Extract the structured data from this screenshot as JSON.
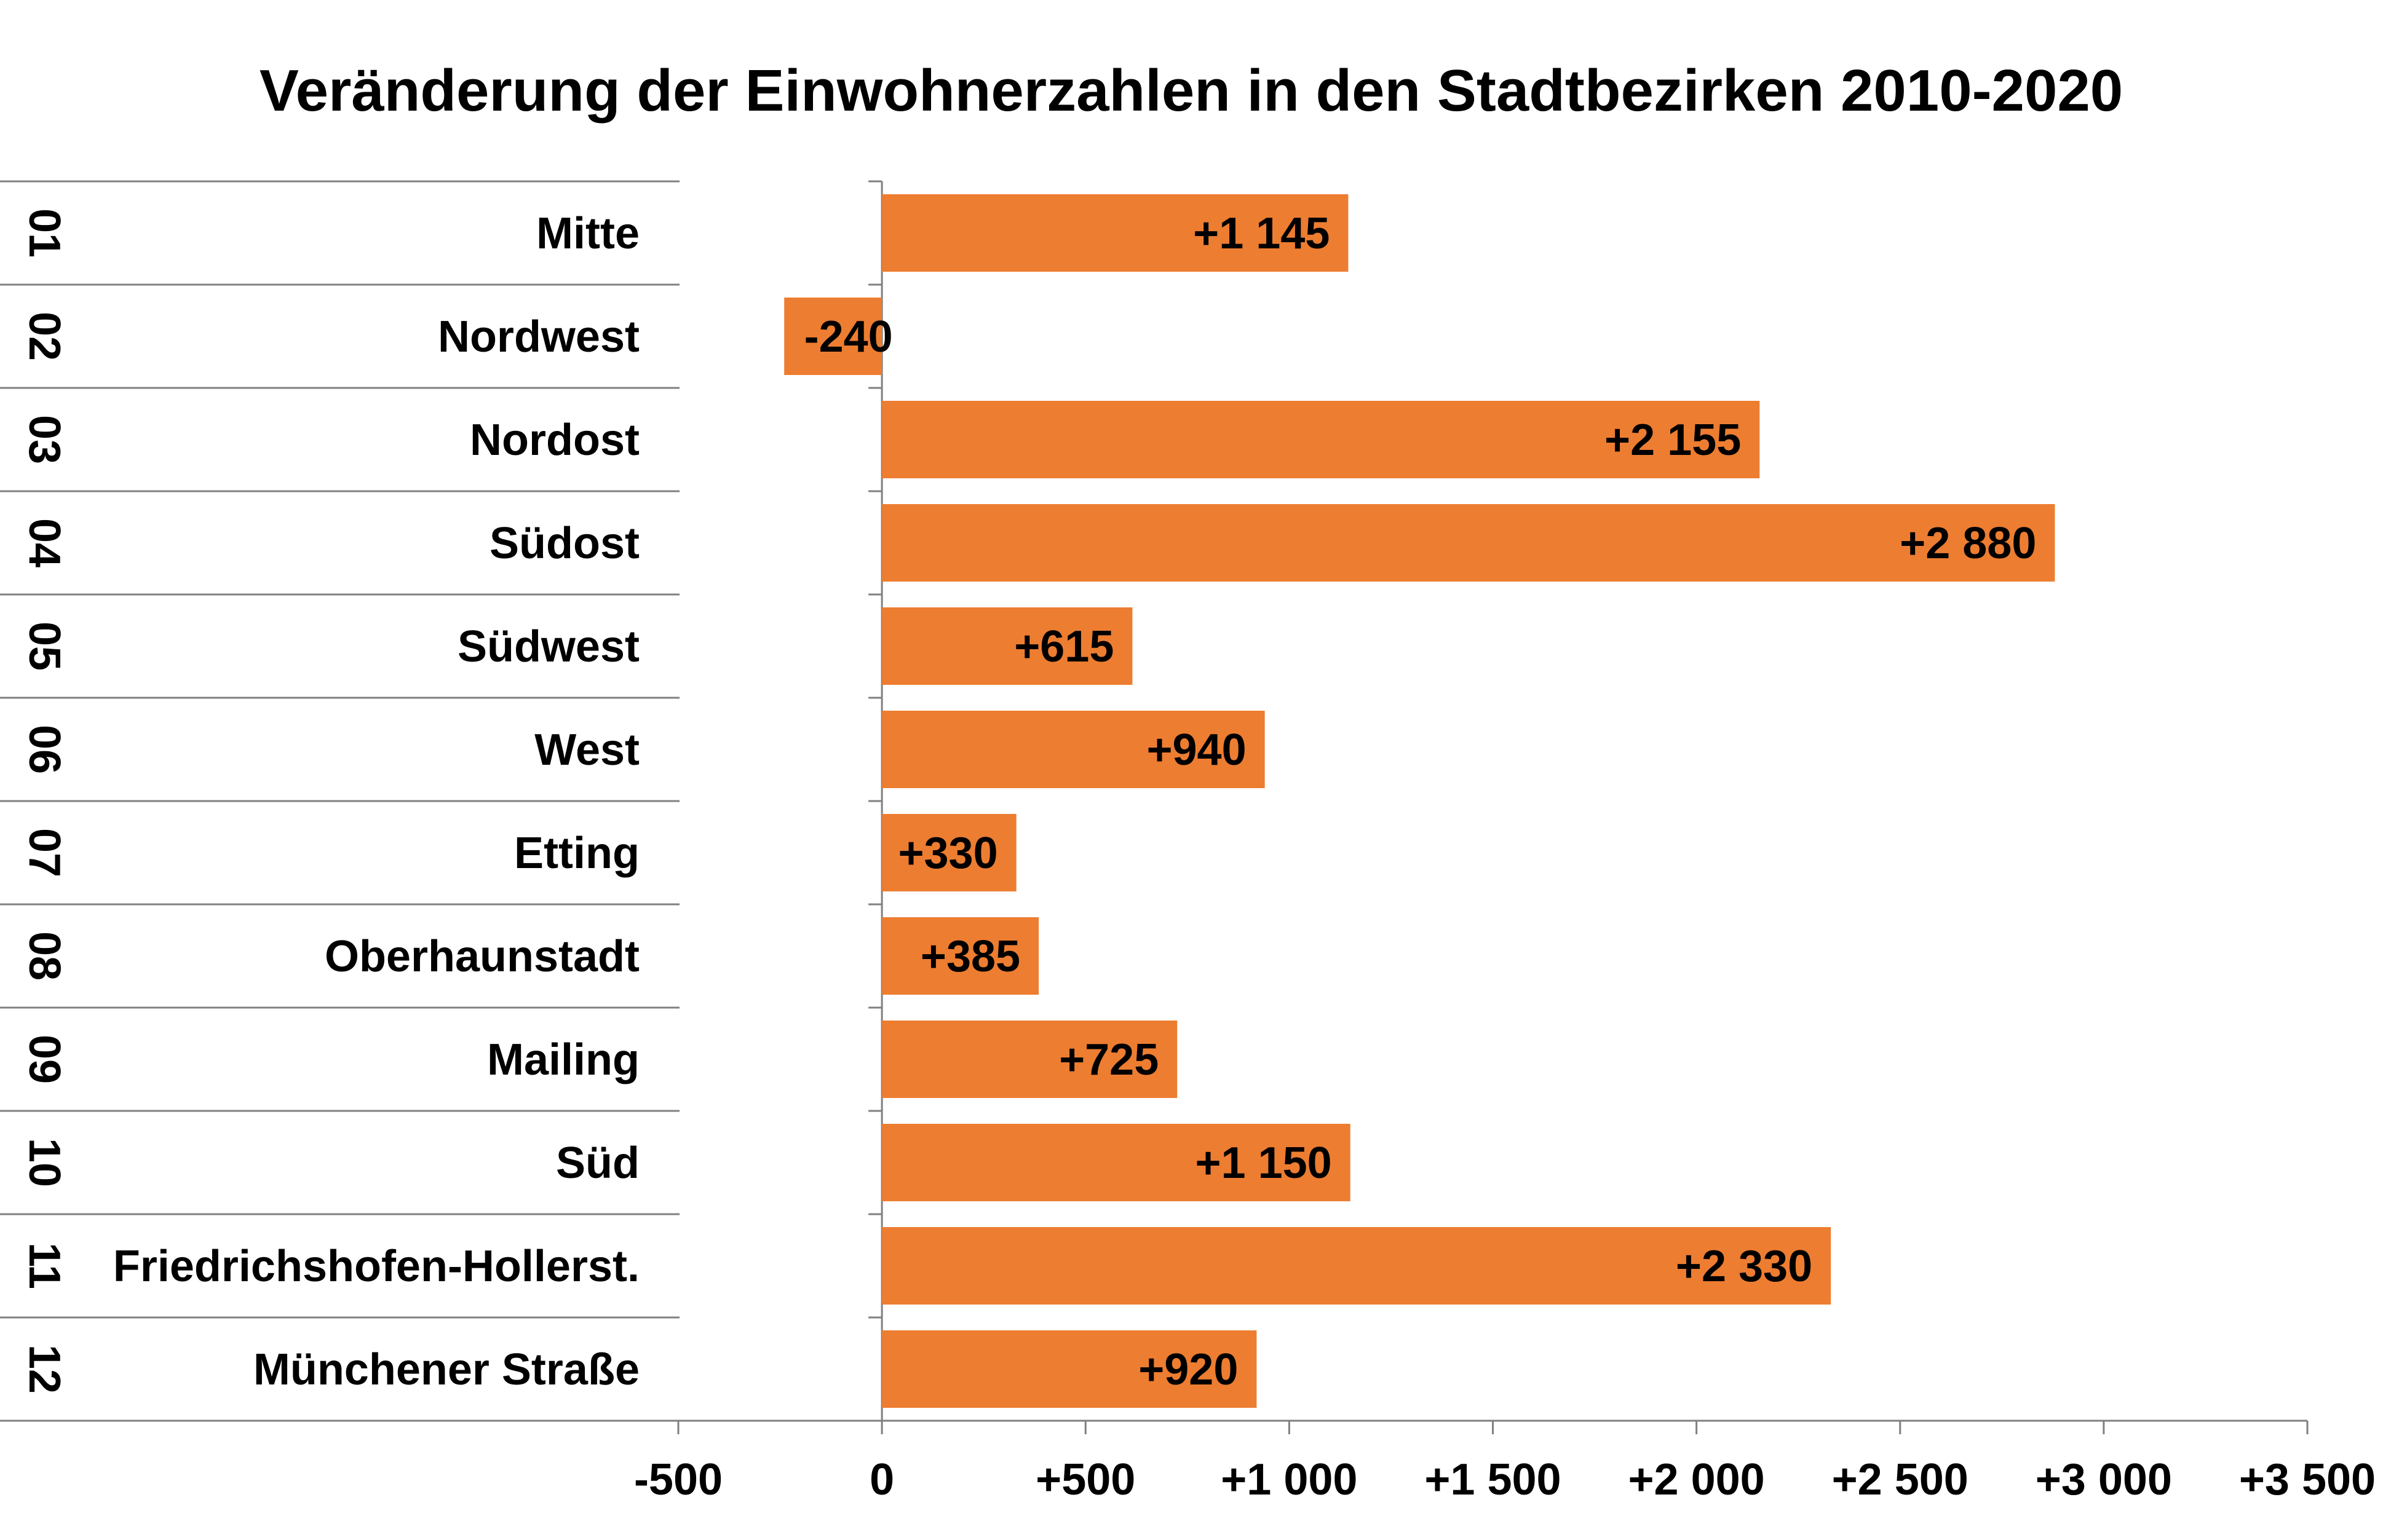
{
  "chart_data": {
    "type": "bar",
    "orientation": "horizontal",
    "title": "Veränderung der Einwohnerzahlen in den Stadtbezirken 2010-2020",
    "xlabel": "",
    "ylabel": "",
    "xlim": [
      -500,
      3500
    ],
    "xticks": [
      -500,
      0,
      500,
      1000,
      1500,
      2000,
      2500,
      3000,
      3500
    ],
    "xtick_labels": [
      "-500",
      "0",
      "+500",
      "+1 000",
      "+1 500",
      "+2 000",
      "+2 500",
      "+3 000",
      "+3 500"
    ],
    "grid": false,
    "legend": "none",
    "codes": [
      "01",
      "02",
      "03",
      "04",
      "05",
      "06",
      "07",
      "08",
      "09",
      "10",
      "11",
      "12"
    ],
    "categories": [
      "Mitte",
      "Nordwest",
      "Nordost",
      "Südost",
      "Südwest",
      "West",
      "Etting",
      "Oberhaunstadt",
      "Mailing",
      "Süd",
      "Friedrichshofen-Hollerst.",
      "Münchener Straße"
    ],
    "values": [
      1145,
      -240,
      2155,
      2880,
      615,
      940,
      330,
      385,
      725,
      1150,
      2330,
      920
    ],
    "data_labels": [
      "+1 145",
      "-240",
      "+2 155",
      "+2 880",
      "+615",
      "+940",
      "+330",
      "+385",
      "+725",
      "+1 150",
      "+2 330",
      "+920"
    ],
    "bar_color": "#ED7D31"
  }
}
